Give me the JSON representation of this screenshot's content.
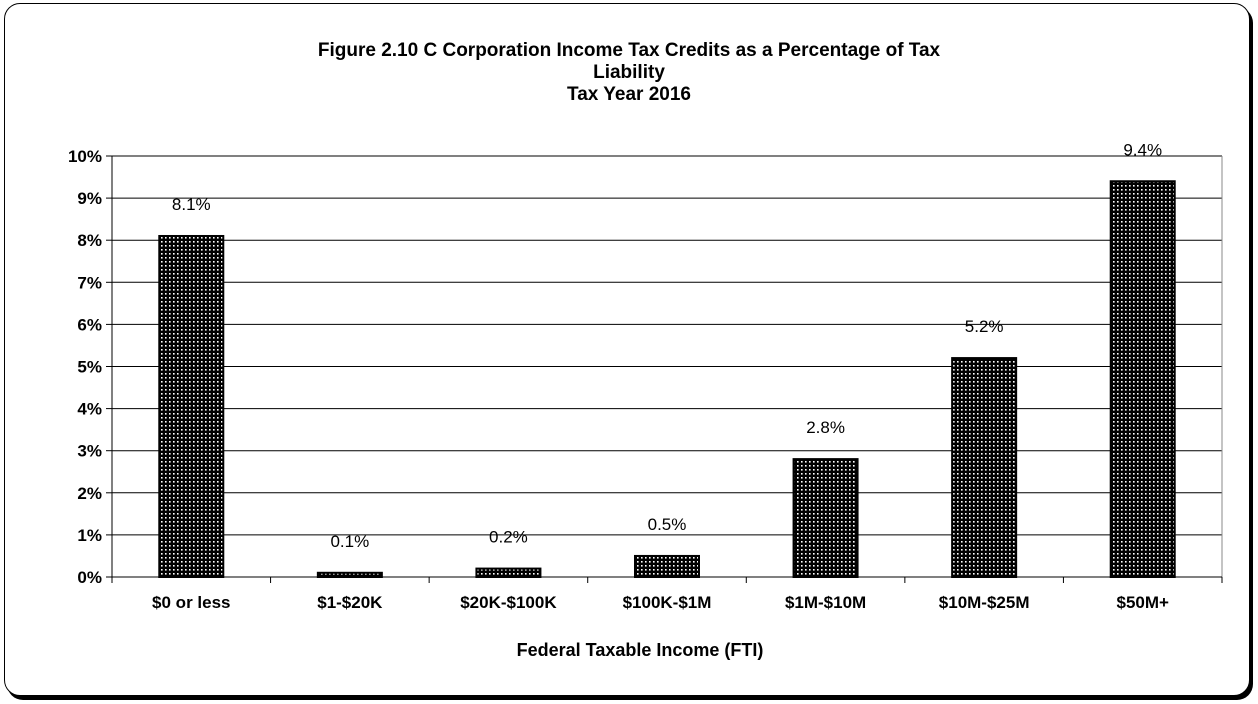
{
  "chart_data": {
    "type": "bar",
    "title_lines": [
      "Figure 2.10 C Corporation Income Tax Credits as a Percentage of Tax",
      "Liability",
      "Tax Year 2016"
    ],
    "xlabel": "Federal Taxable Income (FTI)",
    "ylabel": "",
    "categories": [
      "$0 or less",
      "$1-$20K",
      "$20K-$100K",
      "$100K-$1M",
      "$1M-$10M",
      "$10M-$25M",
      "$50M+"
    ],
    "values": [
      8.1,
      0.1,
      0.2,
      0.5,
      2.8,
      5.2,
      9.4
    ],
    "data_labels": [
      "8.1%",
      "0.1%",
      "0.2%",
      "0.5%",
      "2.8%",
      "5.2%",
      "9.4%"
    ],
    "ylim": [
      0,
      10
    ],
    "yticks": [
      0,
      1,
      2,
      3,
      4,
      5,
      6,
      7,
      8,
      9,
      10
    ],
    "ytick_labels": [
      "0%",
      "1%",
      "2%",
      "3%",
      "4%",
      "5%",
      "6%",
      "7%",
      "8%",
      "9%",
      "10%"
    ],
    "grid": true,
    "legend": "none",
    "bar_fill": "dotted pattern",
    "colors": {
      "bar_base": "#000000",
      "bar_dots": "#ffffff",
      "grid": "#000000",
      "text": "#000000"
    }
  }
}
